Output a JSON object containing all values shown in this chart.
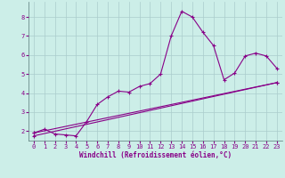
{
  "xlabel": "Windchill (Refroidissement éolien,°C)",
  "bg_color": "#cceee8",
  "grid_color": "#aacccc",
  "line_color": "#880088",
  "xlim": [
    -0.5,
    23.5
  ],
  "ylim": [
    1.5,
    8.8
  ],
  "xticks": [
    0,
    1,
    2,
    3,
    4,
    5,
    6,
    7,
    8,
    9,
    10,
    11,
    12,
    13,
    14,
    15,
    16,
    17,
    18,
    19,
    20,
    21,
    22,
    23
  ],
  "yticks": [
    2,
    3,
    4,
    5,
    6,
    7,
    8
  ],
  "curve1_x": [
    0,
    1,
    2,
    3,
    4,
    5,
    6,
    7,
    8,
    9,
    10,
    11,
    12,
    13,
    14,
    15,
    16,
    17,
    18,
    19,
    20,
    21,
    22,
    23
  ],
  "curve1_y": [
    1.9,
    2.1,
    1.85,
    1.8,
    1.75,
    2.5,
    3.4,
    3.8,
    4.1,
    4.05,
    4.35,
    4.5,
    5.0,
    7.0,
    8.3,
    8.0,
    7.2,
    6.5,
    4.7,
    5.05,
    5.95,
    6.1,
    5.95,
    5.3
  ],
  "line2_x": [
    0,
    23
  ],
  "line2_y": [
    1.9,
    4.55
  ],
  "line3_x": [
    0,
    23
  ],
  "line3_y": [
    1.75,
    4.55
  ],
  "marker": "+"
}
